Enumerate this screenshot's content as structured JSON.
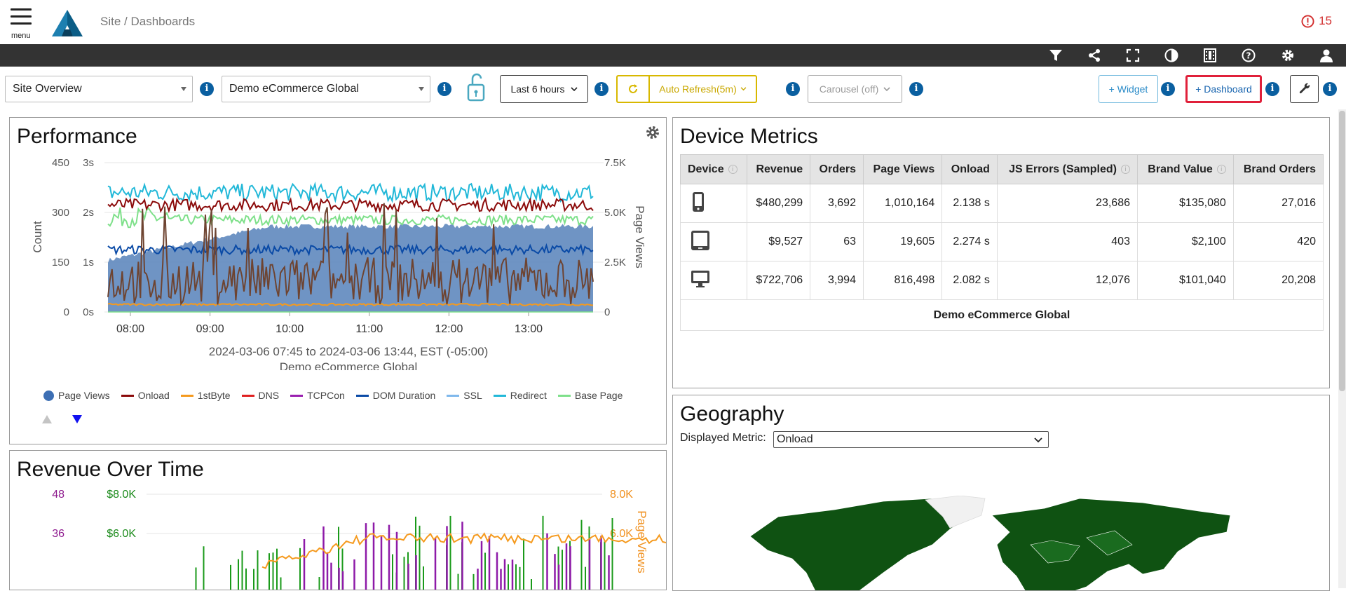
{
  "header": {
    "menu_label": "menu",
    "breadcrumb": "Site / Dashboards",
    "alert_count": "15"
  },
  "toolbar_icons": [
    "filter-icon",
    "share-icon",
    "fullscreen-icon",
    "contrast-icon",
    "film-icon",
    "help-icon",
    "gear-icon",
    "user-icon"
  ],
  "controls": {
    "site_select": "Site Overview",
    "app_select": "Demo eCommerce Global",
    "time_range": "Last 6 hours",
    "auto_refresh": "Auto Refresh(5m)",
    "carousel": "Carousel (off)",
    "add_widget": "+ Widget",
    "add_dashboard": "+ Dashboard",
    "info_symbol": "i"
  },
  "performance": {
    "title": "Performance",
    "range_text": "2024-03-06 07:45 to 2024-03-06 13:44, EST (-05:00)",
    "subtitle": "Demo eCommerce Global",
    "legend": [
      {
        "name": "Page Views",
        "color": "#3d6fb4"
      },
      {
        "name": "Onload",
        "color": "#8b0a0a"
      },
      {
        "name": "1stByte",
        "color": "#f59a1e"
      },
      {
        "name": "DNS",
        "color": "#e02020"
      },
      {
        "name": "TCPCon",
        "color": "#9a1fb0"
      },
      {
        "name": "DOM Duration",
        "color": "#0a4aa6"
      },
      {
        "name": "SSL",
        "color": "#7fb8ec"
      },
      {
        "name": "Redirect",
        "color": "#22b8d8"
      },
      {
        "name": "Base Page",
        "color": "#7ee08a"
      }
    ]
  },
  "chart_data": [
    {
      "type": "line",
      "title": "Performance",
      "x_ticks": [
        "08:00",
        "09:00",
        "10:00",
        "11:00",
        "12:00",
        "13:00"
      ],
      "y_left_count_ticks": [
        "450",
        "300",
        "150",
        "0"
      ],
      "y_left_time_ticks": [
        "3s",
        "2s",
        "1s",
        "0s"
      ],
      "y_right_ticks": [
        "7.5K",
        "5.0K",
        "2.5K",
        "0"
      ],
      "ylabel_left": "Count",
      "ylabel_right": "Page Views",
      "ylim_time_s": [
        0,
        3
      ],
      "ylim_pageviews": [
        0,
        7500
      ],
      "series": [
        {
          "name": "Page Views",
          "kind": "area",
          "approx_level": 4200
        },
        {
          "name": "Onload",
          "approx_level_s": 2.15
        },
        {
          "name": "Redirect",
          "approx_level_s": 2.35
        },
        {
          "name": "DOM Duration",
          "approx_level_s": 1.25
        },
        {
          "name": "Base Page",
          "approx_level_s": 1.85
        },
        {
          "name": "1stByte",
          "approx_level_s": 0.15
        },
        {
          "name": "Count",
          "approx_level": 80
        }
      ]
    },
    {
      "type": "line",
      "title": "Revenue Over Time",
      "y_left_count_ticks": [
        "48",
        "36"
      ],
      "y_left_revenue_ticks": [
        "$8.0K",
        "$6.0K"
      ],
      "y_right_ticks": [
        "8.0K",
        "6.0K"
      ],
      "ylabel_right": "Page Views"
    }
  ],
  "device_metrics": {
    "title": "Device Metrics",
    "columns": [
      "Device",
      "Revenue",
      "Orders",
      "Page Views",
      "Onload",
      "JS Errors (Sampled)",
      "Brand Value",
      "Brand Orders"
    ],
    "rows": [
      {
        "device": "phone-icon",
        "revenue": "$480,299",
        "orders": "3,692",
        "page_views": "1,010,164",
        "onload": "2.138 s",
        "js_errors": "23,686",
        "brand_value": "$135,080",
        "brand_orders": "27,016"
      },
      {
        "device": "tablet-icon",
        "revenue": "$9,527",
        "orders": "63",
        "page_views": "19,605",
        "onload": "2.274 s",
        "js_errors": "403",
        "brand_value": "$2,100",
        "brand_orders": "420"
      },
      {
        "device": "desktop-icon",
        "revenue": "$722,706",
        "orders": "3,994",
        "page_views": "816,498",
        "onload": "2.082 s",
        "js_errors": "12,076",
        "brand_value": "$101,040",
        "brand_orders": "20,208"
      }
    ],
    "footer": "Demo eCommerce Global"
  },
  "revenue": {
    "title": "Revenue Over Time"
  },
  "geography": {
    "title": "Geography",
    "metric_label": "Displayed Metric:",
    "metric_value": "Onload"
  },
  "colors": {
    "accent_blue": "#0a5fa0",
    "refresh_yellow": "#d8b800",
    "highlight_red": "#e0203a",
    "map_green": "#0f5212"
  }
}
